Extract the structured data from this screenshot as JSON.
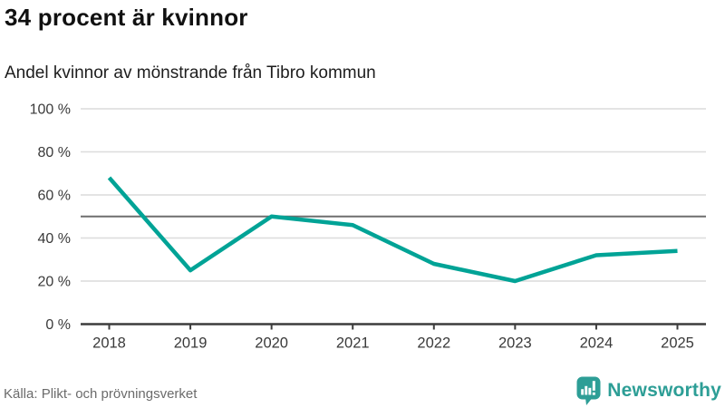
{
  "header": {
    "title": "34 procent är kvinnor",
    "subtitle": "Andel kvinnor av mönstrande från Tibro kommun"
  },
  "footer": {
    "source": "Källa: Plikt- och prövningsverket",
    "brand": "Newsworthy"
  },
  "colors": {
    "line": "#00a396",
    "brand_teal": "#2d9e96",
    "grid": "#dcdcdc",
    "reference_line": "#6e6e6e",
    "axis": "#3c3c3c",
    "tick_label": "#3a3a3a",
    "source_text": "#6b6b6b"
  },
  "chart_data": {
    "type": "line",
    "categories": [
      "2018",
      "2019",
      "2020",
      "2021",
      "2022",
      "2023",
      "2024",
      "2025"
    ],
    "values": [
      68,
      25,
      50,
      46,
      28,
      20,
      32,
      34
    ],
    "series_name": "Andel kvinnor av mönstrande",
    "title": "34 procent är kvinnor",
    "subtitle": "Andel kvinnor av mönstrande från Tibro kommun",
    "xlabel": "",
    "ylabel": "",
    "ylim": [
      0,
      100
    ],
    "yticks": [
      0,
      20,
      40,
      60,
      80,
      100
    ],
    "ytick_suffix": " %",
    "reference_line": 50,
    "grid": true,
    "legend": false
  }
}
